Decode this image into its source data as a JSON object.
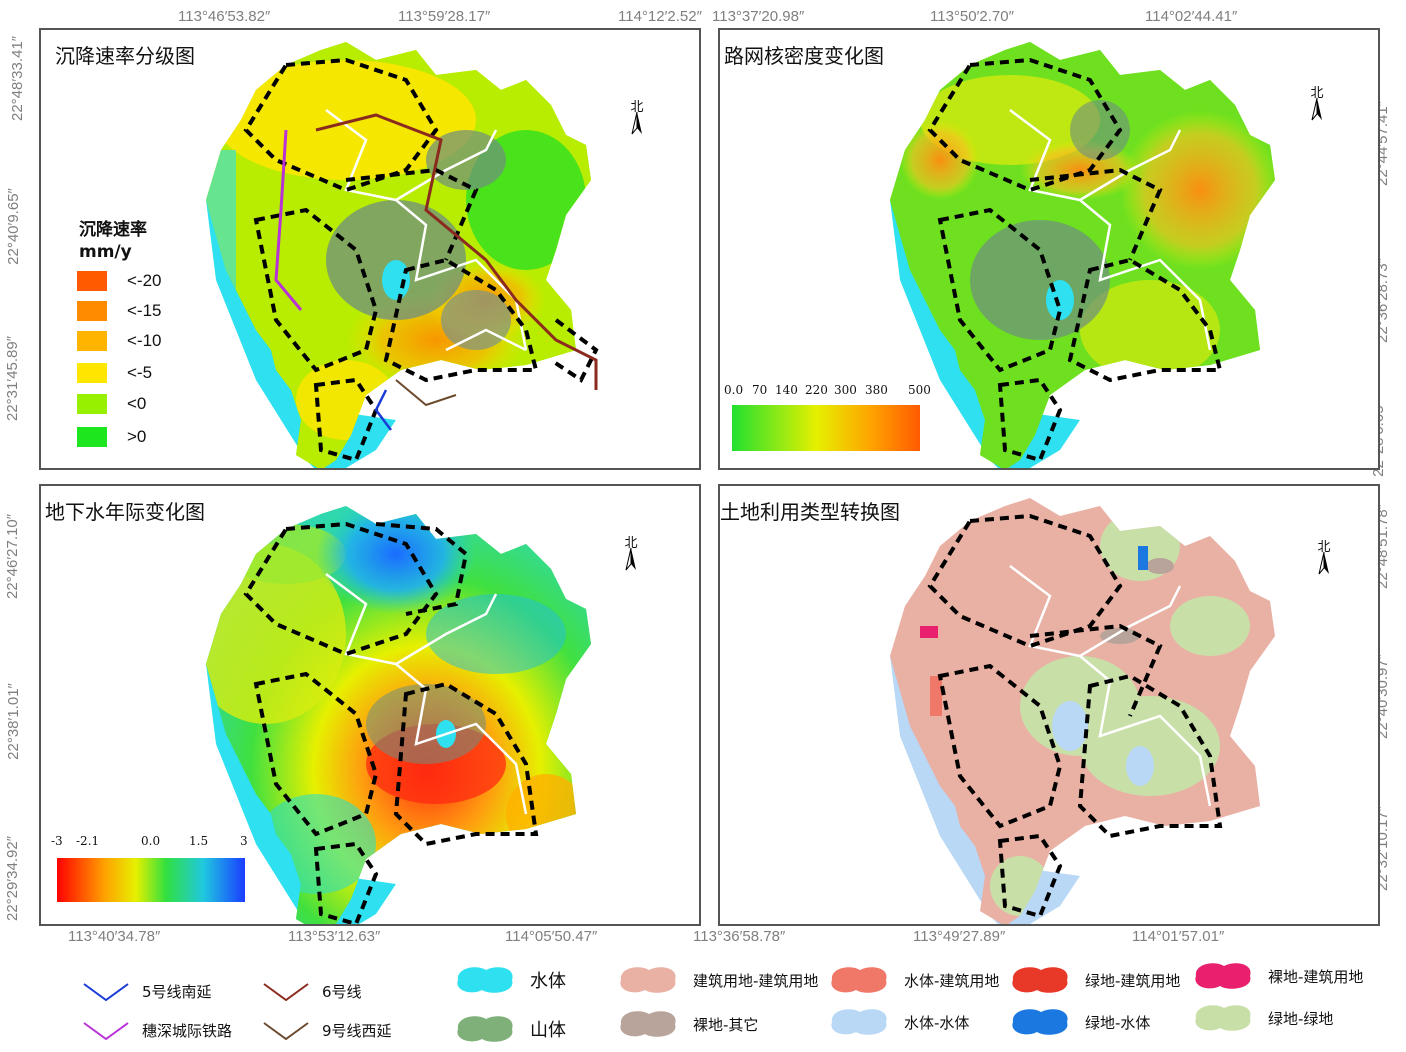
{
  "coords": {
    "top_left": [
      "113°46′53.82″",
      "113°59′28.17″",
      "114°12′2.52″"
    ],
    "top_right": [
      "113°37′20.98″",
      "113°50′2.70″",
      "114°02′44.41″"
    ],
    "bottom_left": [
      "113°40′34.78″",
      "113°53′12.63″",
      "114°05′50.47″"
    ],
    "bottom_right": [
      "113°36′58.78″",
      "113°49′27.89″",
      "114°01′57.01″"
    ],
    "left_top": [
      "22°48′33.41″",
      "22°40′9.65″",
      "22°31′45.89″"
    ],
    "left_bottom": [
      "22°46′27.10″",
      "22°38′1.01″",
      "22°29′34.92″"
    ],
    "right_top": [
      "22°44′57.41″",
      "22°36′28.73″",
      "22°28′0.05″"
    ],
    "right_bottom": [
      "22°48′51.78″",
      "22°40′30.97″",
      "22°32′10.17″"
    ]
  },
  "panels": {
    "subsidence": {
      "title": "沉降速率分级图",
      "legend_title": "沉降速率",
      "legend_unit": "mm/y",
      "classes": [
        {
          "label": "<-20",
          "color": "#ff5a00"
        },
        {
          "label": "<-15",
          "color": "#ff8c00"
        },
        {
          "label": "<-10",
          "color": "#ffb400"
        },
        {
          "label": "<-5",
          "color": "#ffe600"
        },
        {
          "label": "<0",
          "color": "#96f000"
        },
        {
          "label": ">0",
          "color": "#1ee61e"
        }
      ]
    },
    "road": {
      "title": "路网核密度变化图",
      "ramp_labels": [
        "0.0",
        "70",
        "140",
        "220",
        "300",
        "380",
        "500"
      ]
    },
    "groundwater": {
      "title": "地下水年际变化图",
      "ramp_labels": [
        "-3",
        "-2.1",
        "0.0",
        "1.5",
        "3"
      ]
    },
    "landuse": {
      "title": "土地利用类型转换图"
    }
  },
  "north_label": "北",
  "legend": {
    "lines": [
      {
        "label": "5号线南延",
        "color": "#1a3bd6"
      },
      {
        "label": "6号线",
        "color": "#8b2a1e"
      },
      {
        "label": "穗深城际铁路",
        "color": "#b832d8"
      },
      {
        "label": "9号线西延",
        "color": "#6b4a2e"
      }
    ],
    "patches": [
      {
        "label": "水体",
        "color": "#2ee0f0"
      },
      {
        "label": "山体",
        "color": "#7fb07a"
      },
      {
        "label": "建筑用地-建筑用地",
        "color": "#e9b0a4"
      },
      {
        "label": "裸地-其它",
        "color": "#b8a49a"
      },
      {
        "label": "水体-建筑用地",
        "color": "#f07868"
      },
      {
        "label": "水体-水体",
        "color": "#b8d8f6"
      },
      {
        "label": "绿地-建筑用地",
        "color": "#e83828"
      },
      {
        "label": "绿地-水体",
        "color": "#1a78e0"
      },
      {
        "label": "裸地-建筑用地",
        "color": "#e8206e"
      },
      {
        "label": "绿地-绿地",
        "color": "#c8e0a8"
      }
    ]
  }
}
